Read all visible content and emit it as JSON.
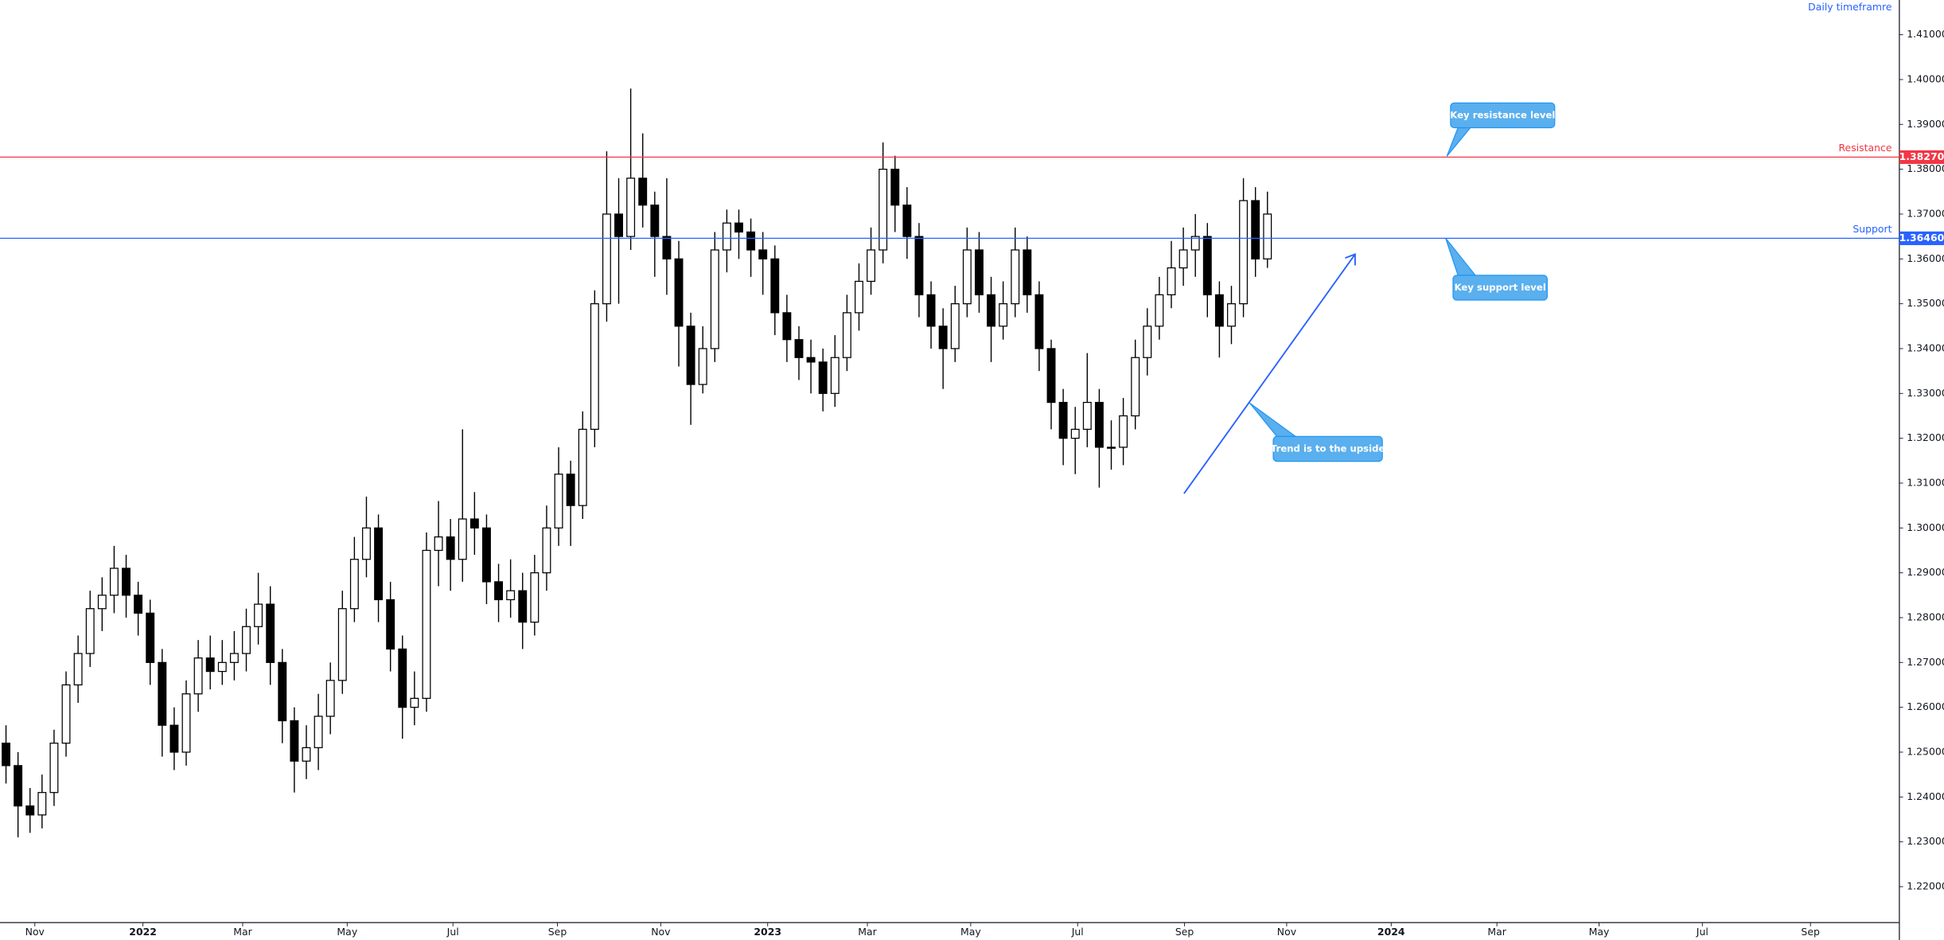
{
  "chart_data": {
    "type": "candlestick",
    "title": "Daily timeframre",
    "x": [
      0,
      1,
      2,
      3,
      4,
      5,
      6,
      7,
      8,
      9,
      10,
      11,
      12,
      13,
      14,
      15,
      16,
      17,
      18,
      19,
      20,
      21,
      22,
      23,
      24,
      25,
      26,
      27,
      28,
      29,
      30,
      31,
      32,
      33,
      34,
      35,
      36,
      37,
      38,
      39,
      40,
      41,
      42,
      43,
      44,
      45,
      46,
      47,
      48,
      49,
      50,
      51,
      52,
      53,
      54,
      55,
      56,
      57,
      58,
      59,
      60,
      61,
      62,
      63,
      64,
      65,
      66,
      67,
      68,
      69,
      70,
      71,
      72,
      73,
      74,
      75,
      76,
      77,
      78,
      79,
      80,
      81,
      82,
      83,
      84,
      85,
      86,
      87,
      88,
      89,
      90,
      91,
      92,
      93,
      94,
      95,
      96,
      97,
      98,
      99,
      100,
      101,
      102,
      103,
      104,
      105
    ],
    "open": [
      1.252,
      1.247,
      1.238,
      1.236,
      1.241,
      1.252,
      1.265,
      1.272,
      1.282,
      1.285,
      1.291,
      1.285,
      1.281,
      1.27,
      1.256,
      1.25,
      1.263,
      1.271,
      1.268,
      1.27,
      1.272,
      1.278,
      1.283,
      1.27,
      1.257,
      1.248,
      1.251,
      1.258,
      1.266,
      1.282,
      1.293,
      1.3,
      1.284,
      1.273,
      1.26,
      1.262,
      1.295,
      1.298,
      1.293,
      1.302,
      1.3,
      1.288,
      1.284,
      1.286,
      1.279,
      1.29,
      1.3,
      1.312,
      1.305,
      1.322,
      1.35,
      1.37,
      1.365,
      1.378,
      1.372,
      1.365,
      1.36,
      1.345,
      1.332,
      1.34,
      1.362,
      1.368,
      1.366,
      1.362,
      1.36,
      1.348,
      1.342,
      1.338,
      1.337,
      1.33,
      1.338,
      1.348,
      1.355,
      1.362,
      1.38,
      1.372,
      1.365,
      1.352,
      1.345,
      1.34,
      1.35,
      1.362,
      1.352,
      1.345,
      1.35,
      1.362,
      1.352,
      1.34,
      1.328,
      1.32,
      1.322,
      1.328,
      1.318,
      1.318,
      1.325,
      1.338,
      1.345,
      1.352,
      1.358,
      1.362,
      1.365,
      1.352,
      1.345,
      1.35,
      1.373,
      1.36
    ],
    "high": [
      1.256,
      1.25,
      1.242,
      1.245,
      1.255,
      1.268,
      1.276,
      1.286,
      1.289,
      1.296,
      1.294,
      1.288,
      1.284,
      1.273,
      1.26,
      1.266,
      1.275,
      1.276,
      1.275,
      1.277,
      1.282,
      1.29,
      1.287,
      1.273,
      1.26,
      1.256,
      1.263,
      1.27,
      1.286,
      1.298,
      1.307,
      1.303,
      1.288,
      1.276,
      1.268,
      1.299,
      1.306,
      1.302,
      1.322,
      1.308,
      1.303,
      1.292,
      1.293,
      1.29,
      1.294,
      1.305,
      1.318,
      1.315,
      1.326,
      1.353,
      1.384,
      1.378,
      1.398,
      1.388,
      1.375,
      1.378,
      1.364,
      1.348,
      1.345,
      1.366,
      1.371,
      1.371,
      1.369,
      1.366,
      1.363,
      1.352,
      1.345,
      1.342,
      1.34,
      1.343,
      1.352,
      1.359,
      1.367,
      1.386,
      1.383,
      1.376,
      1.368,
      1.355,
      1.349,
      1.354,
      1.367,
      1.366,
      1.356,
      1.355,
      1.367,
      1.365,
      1.355,
      1.342,
      1.331,
      1.327,
      1.339,
      1.331,
      1.324,
      1.329,
      1.342,
      1.349,
      1.356,
      1.364,
      1.367,
      1.37,
      1.368,
      1.355,
      1.354,
      1.378,
      1.376,
      1.375
    ],
    "low": [
      1.243,
      1.231,
      1.232,
      1.233,
      1.238,
      1.249,
      1.261,
      1.269,
      1.277,
      1.281,
      1.28,
      1.276,
      1.265,
      1.249,
      1.246,
      1.247,
      1.259,
      1.264,
      1.265,
      1.266,
      1.268,
      1.274,
      1.265,
      1.252,
      1.241,
      1.244,
      1.246,
      1.254,
      1.263,
      1.279,
      1.289,
      1.279,
      1.268,
      1.253,
      1.256,
      1.259,
      1.287,
      1.286,
      1.288,
      1.294,
      1.283,
      1.279,
      1.28,
      1.273,
      1.276,
      1.286,
      1.296,
      1.296,
      1.302,
      1.318,
      1.346,
      1.35,
      1.362,
      1.367,
      1.356,
      1.352,
      1.336,
      1.323,
      1.33,
      1.337,
      1.357,
      1.36,
      1.356,
      1.352,
      1.343,
      1.337,
      1.333,
      1.33,
      1.326,
      1.327,
      1.335,
      1.344,
      1.352,
      1.359,
      1.366,
      1.36,
      1.347,
      1.34,
      1.331,
      1.337,
      1.347,
      1.348,
      1.337,
      1.342,
      1.347,
      1.348,
      1.335,
      1.322,
      1.314,
      1.312,
      1.318,
      1.309,
      1.313,
      1.314,
      1.322,
      1.334,
      1.342,
      1.349,
      1.354,
      1.356,
      1.347,
      1.338,
      1.341,
      1.347,
      1.356,
      1.358
    ],
    "close": [
      1.247,
      1.238,
      1.236,
      1.241,
      1.252,
      1.265,
      1.272,
      1.282,
      1.285,
      1.291,
      1.285,
      1.281,
      1.27,
      1.256,
      1.25,
      1.263,
      1.271,
      1.268,
      1.27,
      1.272,
      1.278,
      1.283,
      1.27,
      1.257,
      1.248,
      1.251,
      1.258,
      1.266,
      1.282,
      1.293,
      1.3,
      1.284,
      1.273,
      1.26,
      1.262,
      1.295,
      1.298,
      1.293,
      1.302,
      1.3,
      1.288,
      1.284,
      1.286,
      1.279,
      1.29,
      1.3,
      1.312,
      1.305,
      1.322,
      1.35,
      1.37,
      1.365,
      1.378,
      1.372,
      1.365,
      1.36,
      1.345,
      1.332,
      1.34,
      1.362,
      1.368,
      1.366,
      1.362,
      1.36,
      1.348,
      1.342,
      1.338,
      1.337,
      1.33,
      1.338,
      1.348,
      1.355,
      1.362,
      1.38,
      1.372,
      1.365,
      1.352,
      1.345,
      1.34,
      1.35,
      1.362,
      1.352,
      1.345,
      1.35,
      1.362,
      1.352,
      1.34,
      1.328,
      1.32,
      1.322,
      1.328,
      1.318,
      1.318,
      1.325,
      1.338,
      1.345,
      1.352,
      1.358,
      1.362,
      1.365,
      1.352,
      1.345,
      1.35,
      1.373,
      1.36,
      1.37
    ],
    "up_color": "#ffffff",
    "down_color": "#000000",
    "wick_color": "#000000",
    "xlim": [
      -0.5,
      157.6
    ],
    "xticks": [
      {
        "value": 2.4,
        "label": "Nov"
      },
      {
        "value": 11.4,
        "label": "2022"
      },
      {
        "value": 19.7,
        "label": "Mar"
      },
      {
        "value": 28.4,
        "label": "May"
      },
      {
        "value": 37.2,
        "label": "Jul"
      },
      {
        "value": 45.9,
        "label": "Sep"
      },
      {
        "value": 54.5,
        "label": "Nov"
      },
      {
        "value": 63.4,
        "label": "2023"
      },
      {
        "value": 71.7,
        "label": "Mar"
      },
      {
        "value": 80.3,
        "label": "May"
      },
      {
        "value": 89.2,
        "label": "Jul"
      },
      {
        "value": 98.1,
        "label": "Sep"
      },
      {
        "value": 106.6,
        "label": "Nov"
      },
      {
        "value": 115.3,
        "label": "2024"
      },
      {
        "value": 124.1,
        "label": "Mar"
      },
      {
        "value": 132.6,
        "label": "May"
      },
      {
        "value": 141.2,
        "label": "Jul"
      },
      {
        "value": 150.2,
        "label": "Sep"
      }
    ],
    "ylim": [
      1.21198,
      1.41774
    ],
    "yticks": [
      {
        "value": 1.22,
        "label": "1.22000"
      },
      {
        "value": 1.23,
        "label": "1.23000"
      },
      {
        "value": 1.24,
        "label": "1.24000"
      },
      {
        "value": 1.25,
        "label": "1.25000"
      },
      {
        "value": 1.26,
        "label": "1.26000"
      },
      {
        "value": 1.27,
        "label": "1.27000"
      },
      {
        "value": 1.28,
        "label": "1.28000"
      },
      {
        "value": 1.29,
        "label": "1.29000"
      },
      {
        "value": 1.3,
        "label": "1.30000"
      },
      {
        "value": 1.31,
        "label": "1.31000"
      },
      {
        "value": 1.32,
        "label": "1.32000"
      },
      {
        "value": 1.33,
        "label": "1.33000"
      },
      {
        "value": 1.34,
        "label": "1.34000"
      },
      {
        "value": 1.35,
        "label": "1.35000"
      },
      {
        "value": 1.36,
        "label": "1.36000"
      },
      {
        "value": 1.37,
        "label": "1.37000"
      },
      {
        "value": 1.38,
        "label": "1.38000"
      },
      {
        "value": 1.39,
        "label": "1.39000"
      },
      {
        "value": 1.4,
        "label": "1.40000"
      },
      {
        "value": 1.41,
        "label": "1.41000"
      }
    ],
    "hlines": [
      {
        "name": "Resistance",
        "value": 1.3827,
        "value_label": "1.38270",
        "color": "#f23645"
      },
      {
        "name": "Support",
        "value": 1.3646,
        "value_label": "1.36460",
        "color": "#2962ff"
      }
    ],
    "annotations": [
      "Key resistance level",
      "Key support level",
      "Trend is to the upside"
    ]
  }
}
